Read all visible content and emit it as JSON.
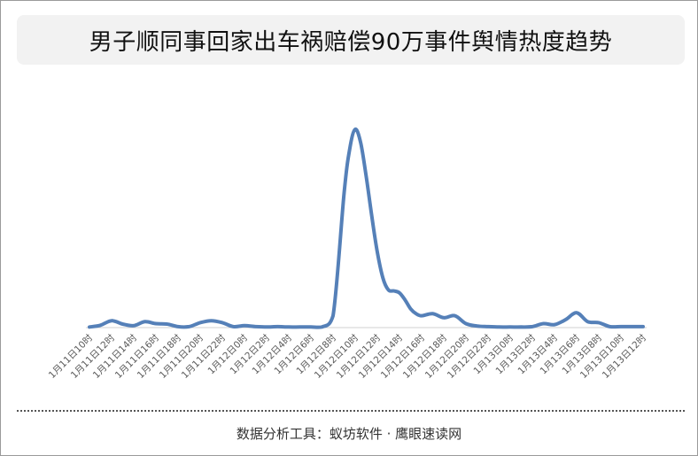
{
  "title": "男子顺同事回家出车祸赔偿90万事件舆情热度趋势",
  "footer": "数据分析工具：蚁坊软件 · 鹰眼速读网",
  "colors": {
    "line": "#5580b8",
    "baseline": "#d0d0d0",
    "title_bg": "#f2f2f2"
  },
  "chart_data": {
    "type": "line",
    "title": "男子顺同事回家出车祸赔偿90万事件舆情热度趋势",
    "xlabel": "",
    "ylabel": "",
    "grid": false,
    "legend": "none",
    "ylim": [
      0,
      100
    ],
    "categories": [
      "1月11日10时",
      "1月11日12时",
      "1月11日14时",
      "1月11日16时",
      "1月11日18时",
      "1月11日20时",
      "1月11日22时",
      "1月12日0时",
      "1月12日2时",
      "1月12日4时",
      "1月12日6时",
      "1月12日8时",
      "1月12日10时",
      "1月12日12时",
      "1月12日14时",
      "1月12日16时",
      "1月12日18时",
      "1月12日20时",
      "1月12日22时",
      "1月13日0时",
      "1月13日2时",
      "1月13日4时",
      "1月13日6时",
      "1月13日8时",
      "1月13日10时",
      "1月13日12时"
    ],
    "x": [
      0,
      0.5,
      1,
      1.5,
      2,
      2.5,
      3,
      3.5,
      4,
      4.5,
      5,
      5.5,
      6,
      6.5,
      7,
      7.5,
      8,
      8.5,
      9,
      9.5,
      10,
      10.5,
      11,
      11.5,
      11.75,
      12,
      12.25,
      12.5,
      12.75,
      13,
      13.25,
      13.5,
      13.75,
      14,
      14.25,
      14.5,
      14.75,
      15,
      15.5,
      16,
      16.5,
      17,
      17.5,
      18,
      18.5,
      19,
      19.5,
      20,
      20.5,
      21,
      21.5,
      22,
      22.5,
      23,
      23.5,
      24,
      24.5,
      25
    ],
    "series": [
      {
        "values": [
          0.3,
          1.2,
          3.5,
          1.8,
          1.0,
          3.0,
          2.0,
          1.8,
          0.5,
          0.5,
          2.5,
          3.5,
          2.5,
          0.5,
          1.0,
          0.5,
          0.3,
          0.5,
          0.3,
          0.3,
          0.3,
          0.3,
          6,
          68,
          90,
          100,
          93,
          76,
          56,
          38,
          25,
          19,
          18.5,
          17.5,
          14,
          9.5,
          7,
          6,
          7,
          5,
          6,
          2,
          0.8,
          0.5,
          0.3,
          0.3,
          0.3,
          0.5,
          2.0,
          1.5,
          4.0,
          7.5,
          3.0,
          2.5,
          0.5,
          0.5,
          0.5,
          0.5
        ]
      }
    ]
  }
}
